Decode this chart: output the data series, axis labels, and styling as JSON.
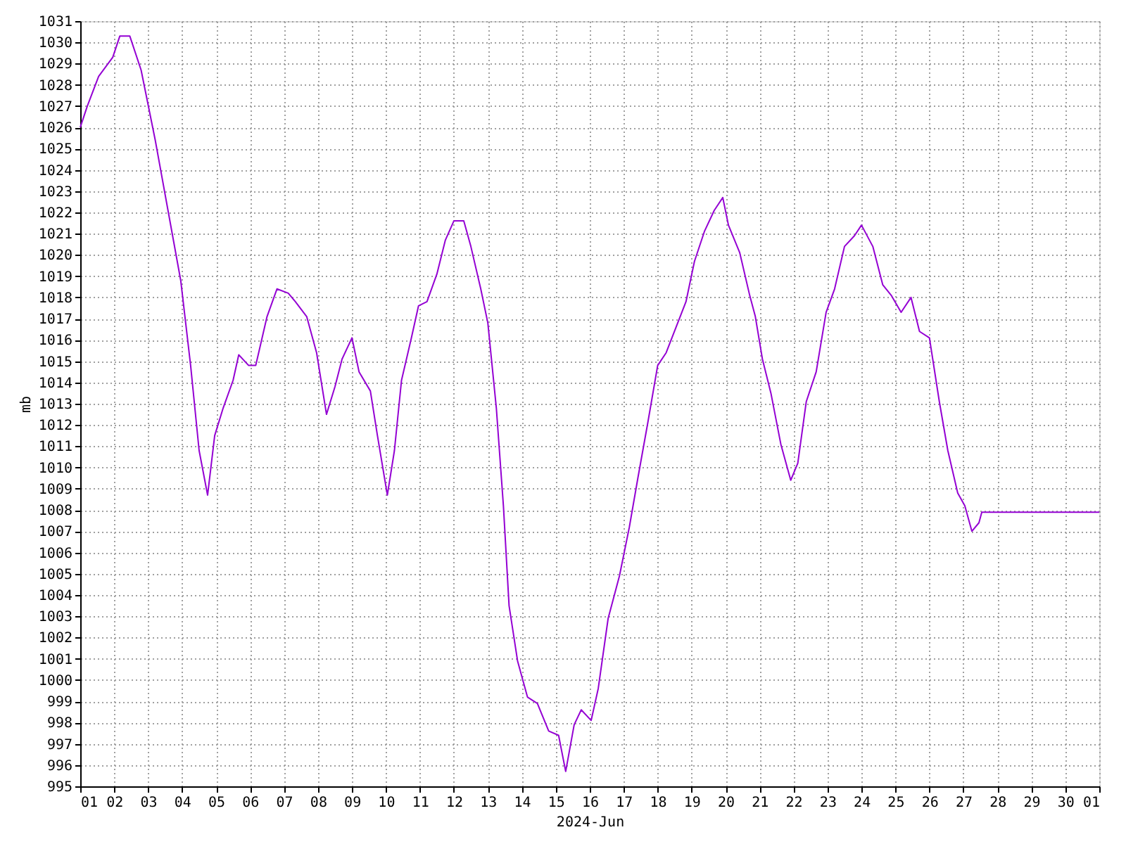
{
  "chart_data": {
    "type": "line",
    "xlabel": "2024-Jun",
    "ylabel": "mb",
    "grid": true,
    "line_style": "solid",
    "marker": "none",
    "xlim": [
      "2024-06-01T00:00",
      "2024-07-01T00:00"
    ],
    "xticks": [
      {
        "value": "2024-06-01",
        "label": "01"
      },
      {
        "value": "2024-06-02",
        "label": "02"
      },
      {
        "value": "2024-06-03",
        "label": "03"
      },
      {
        "value": "2024-06-04",
        "label": "04"
      },
      {
        "value": "2024-06-05",
        "label": "05"
      },
      {
        "value": "2024-06-06",
        "label": "06"
      },
      {
        "value": "2024-06-07",
        "label": "07"
      },
      {
        "value": "2024-06-08",
        "label": "08"
      },
      {
        "value": "2024-06-09",
        "label": "09"
      },
      {
        "value": "2024-06-10",
        "label": "10"
      },
      {
        "value": "2024-06-11",
        "label": "11"
      },
      {
        "value": "2024-06-12",
        "label": "12"
      },
      {
        "value": "2024-06-13",
        "label": "13"
      },
      {
        "value": "2024-06-14",
        "label": "14"
      },
      {
        "value": "2024-06-15",
        "label": "15"
      },
      {
        "value": "2024-06-16",
        "label": "16"
      },
      {
        "value": "2024-06-17",
        "label": "17"
      },
      {
        "value": "2024-06-18",
        "label": "18"
      },
      {
        "value": "2024-06-19",
        "label": "19"
      },
      {
        "value": "2024-06-20",
        "label": "20"
      },
      {
        "value": "2024-06-21",
        "label": "21"
      },
      {
        "value": "2024-06-22",
        "label": "22"
      },
      {
        "value": "2024-06-23",
        "label": "23"
      },
      {
        "value": "2024-06-24",
        "label": "24"
      },
      {
        "value": "2024-06-25",
        "label": "25"
      },
      {
        "value": "2024-06-26",
        "label": "26"
      },
      {
        "value": "2024-06-27",
        "label": "27"
      },
      {
        "value": "2024-06-28",
        "label": "28"
      },
      {
        "value": "2024-06-29",
        "label": "29"
      },
      {
        "value": "2024-06-30",
        "label": "30"
      },
      {
        "value": "2024-07-01",
        "label": "01"
      }
    ],
    "ylim": [
      995,
      1031
    ],
    "yticks": [
      995,
      996,
      997,
      998,
      999,
      1000,
      1001,
      1002,
      1003,
      1004,
      1005,
      1006,
      1007,
      1008,
      1009,
      1010,
      1011,
      1012,
      1013,
      1014,
      1015,
      1016,
      1017,
      1018,
      1019,
      1020,
      1021,
      1022,
      1023,
      1024,
      1025,
      1026,
      1027,
      1028,
      1029,
      1030,
      1031
    ],
    "x": [
      "2024-06-01T00:00",
      "2024-06-01T05:00",
      "2024-06-01T13:00",
      "2024-06-01T23:00",
      "2024-06-02T04:00",
      "2024-06-02T11:00",
      "2024-06-02T19:00",
      "2024-06-03T05:00",
      "2024-06-03T14:00",
      "2024-06-03T23:00",
      "2024-06-04T06:00",
      "2024-06-04T12:00",
      "2024-06-04T18:00",
      "2024-06-04T23:00",
      "2024-06-05T05:00",
      "2024-06-05T12:00",
      "2024-06-05T16:00",
      "2024-06-05T23:00",
      "2024-06-06T04:00",
      "2024-06-06T12:00",
      "2024-06-06T19:00",
      "2024-06-07T03:00",
      "2024-06-07T08:00",
      "2024-06-07T16:00",
      "2024-06-07T23:00",
      "2024-06-08T06:00",
      "2024-06-08T12:00",
      "2024-06-08T17:00",
      "2024-06-09T00:00",
      "2024-06-09T05:00",
      "2024-06-09T13:00",
      "2024-06-09T18:00",
      "2024-06-10T01:00",
      "2024-06-10T06:00",
      "2024-06-10T11:00",
      "2024-06-10T18:00",
      "2024-06-10T23:00",
      "2024-06-11T05:00",
      "2024-06-11T12:00",
      "2024-06-11T18:00",
      "2024-06-12T00:00",
      "2024-06-12T07:00",
      "2024-06-12T12:00",
      "2024-06-12T19:00",
      "2024-06-13T00:00",
      "2024-06-13T06:00",
      "2024-06-13T11:00",
      "2024-06-13T15:00",
      "2024-06-13T21:00",
      "2024-06-14T04:00",
      "2024-06-14T11:00",
      "2024-06-14T19:00",
      "2024-06-15T02:00",
      "2024-06-15T07:00",
      "2024-06-15T13:00",
      "2024-06-15T18:00",
      "2024-06-16T01:00",
      "2024-06-16T06:00",
      "2024-06-16T13:00",
      "2024-06-16T21:00",
      "2024-06-17T04:00",
      "2024-06-17T10:00",
      "2024-06-17T17:00",
      "2024-06-18T00:00",
      "2024-06-18T06:00",
      "2024-06-18T13:00",
      "2024-06-18T20:00",
      "2024-06-19T02:00",
      "2024-06-19T09:00",
      "2024-06-19T16:00",
      "2024-06-19T22:00",
      "2024-06-20T02:00",
      "2024-06-20T10:00",
      "2024-06-20T17:00",
      "2024-06-20T21:00",
      "2024-06-21T02:00",
      "2024-06-21T08:00",
      "2024-06-21T15:00",
      "2024-06-21T22:00",
      "2024-06-22T03:00",
      "2024-06-22T09:00",
      "2024-06-22T16:00",
      "2024-06-22T23:00",
      "2024-06-23T05:00",
      "2024-06-23T12:00",
      "2024-06-23T19:00",
      "2024-06-24T00:00",
      "2024-06-24T08:00",
      "2024-06-24T15:00",
      "2024-06-24T21:00",
      "2024-06-25T04:00",
      "2024-06-25T11:00",
      "2024-06-25T17:00",
      "2024-06-26T00:00",
      "2024-06-26T07:00",
      "2024-06-26T13:00",
      "2024-06-26T20:00",
      "2024-06-27T01:00",
      "2024-06-27T06:00",
      "2024-06-27T11:00",
      "2024-06-27T13:00",
      "2024-07-01T00:00"
    ],
    "series": [
      {
        "color": "#9400d3",
        "values": [
          1026.0,
          1027.0,
          1028.4,
          1029.3,
          1030.3,
          1030.3,
          1028.7,
          1025.4,
          1022.1,
          1018.8,
          1014.8,
          1010.8,
          1008.7,
          1011.5,
          1012.8,
          1014.1,
          1015.3,
          1014.8,
          1014.8,
          1017.1,
          1018.4,
          1018.2,
          1017.8,
          1017.1,
          1015.4,
          1012.5,
          1013.8,
          1015.1,
          1016.1,
          1014.5,
          1013.6,
          1011.5,
          1008.7,
          1010.8,
          1014.1,
          1016.1,
          1017.6,
          1017.8,
          1019.1,
          1020.7,
          1021.6,
          1021.6,
          1020.4,
          1018.4,
          1016.8,
          1012.8,
          1008.2,
          1003.5,
          1000.9,
          999.2,
          998.9,
          997.6,
          997.4,
          995.7,
          997.9,
          998.6,
          998.1,
          999.6,
          1002.9,
          1004.9,
          1007.2,
          1009.5,
          1012.1,
          1014.8,
          1015.4,
          1016.6,
          1017.8,
          1019.7,
          1021.1,
          1022.1,
          1022.7,
          1021.4,
          1020.1,
          1018.1,
          1017.1,
          1015.1,
          1013.5,
          1011.1,
          1009.4,
          1010.2,
          1013.1,
          1014.5,
          1017.3,
          1018.4,
          1020.4,
          1020.9,
          1021.4,
          1020.4,
          1018.6,
          1018.1,
          1017.3,
          1018.0,
          1016.4,
          1016.1,
          1013.1,
          1010.8,
          1008.8,
          1008.2,
          1007.0,
          1007.4,
          1007.9,
          1007.9
        ]
      }
    ]
  }
}
